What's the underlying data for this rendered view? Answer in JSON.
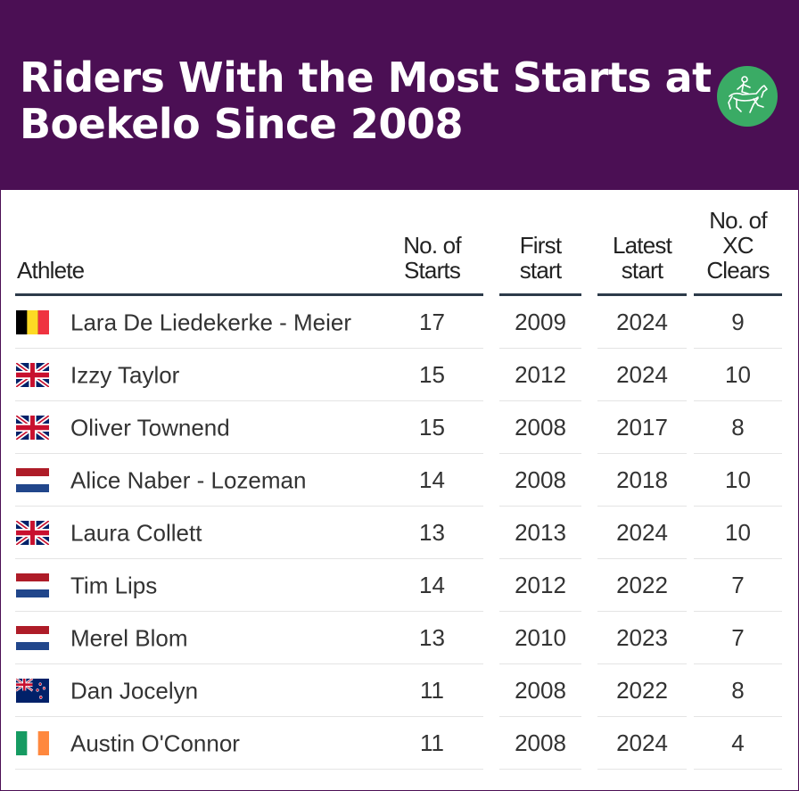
{
  "title": "Riders With the Most Starts at Boekelo Since 2008",
  "colors": {
    "header_bg": "#4b0f54",
    "logo_green": "#3aab65",
    "rule": "#2d3b4a"
  },
  "logo_icon": "horse-rider-logo",
  "columns": {
    "athlete": "Athlete",
    "starts": "No. of Starts",
    "first": "First start",
    "latest": "Latest start",
    "xc": "No. of XC Clears"
  },
  "chart_data": {
    "type": "table",
    "title": "Riders With the Most Starts at Boekelo Since 2008",
    "columns": [
      "Athlete",
      "No. of Starts",
      "First start",
      "Latest start",
      "No. of XC Clears"
    ],
    "rows": [
      {
        "flag": "BEL",
        "athlete": "Lara De Liedekerke - Meier",
        "starts": "17",
        "first": "2009",
        "latest": "2024",
        "xc": "9"
      },
      {
        "flag": "GBR",
        "athlete": "Izzy Taylor",
        "starts": "15",
        "first": "2012",
        "latest": "2024",
        "xc": "10"
      },
      {
        "flag": "GBR",
        "athlete": "Oliver Townend",
        "starts": "15",
        "first": "2008",
        "latest": "2017",
        "xc": "8"
      },
      {
        "flag": "NED",
        "athlete": "Alice Naber - Lozeman",
        "starts": "14",
        "first": "2008",
        "latest": "2018",
        "xc": "10"
      },
      {
        "flag": "GBR",
        "athlete": "Laura Collett",
        "starts": "13",
        "first": "2013",
        "latest": "2024",
        "xc": "10"
      },
      {
        "flag": "NED",
        "athlete": "Tim Lips",
        "starts": "14",
        "first": "2012",
        "latest": "2022",
        "xc": "7"
      },
      {
        "flag": "NED",
        "athlete": "Merel Blom",
        "starts": "13",
        "first": "2010",
        "latest": "2023",
        "xc": "7"
      },
      {
        "flag": "NZL",
        "athlete": "Dan Jocelyn",
        "starts": "11",
        "first": "2008",
        "latest": "2022",
        "xc": "8"
      },
      {
        "flag": "IRL",
        "athlete": "Austin O'Connor",
        "starts": "11",
        "first": "2008",
        "latest": "2024",
        "xc": "4"
      }
    ]
  }
}
